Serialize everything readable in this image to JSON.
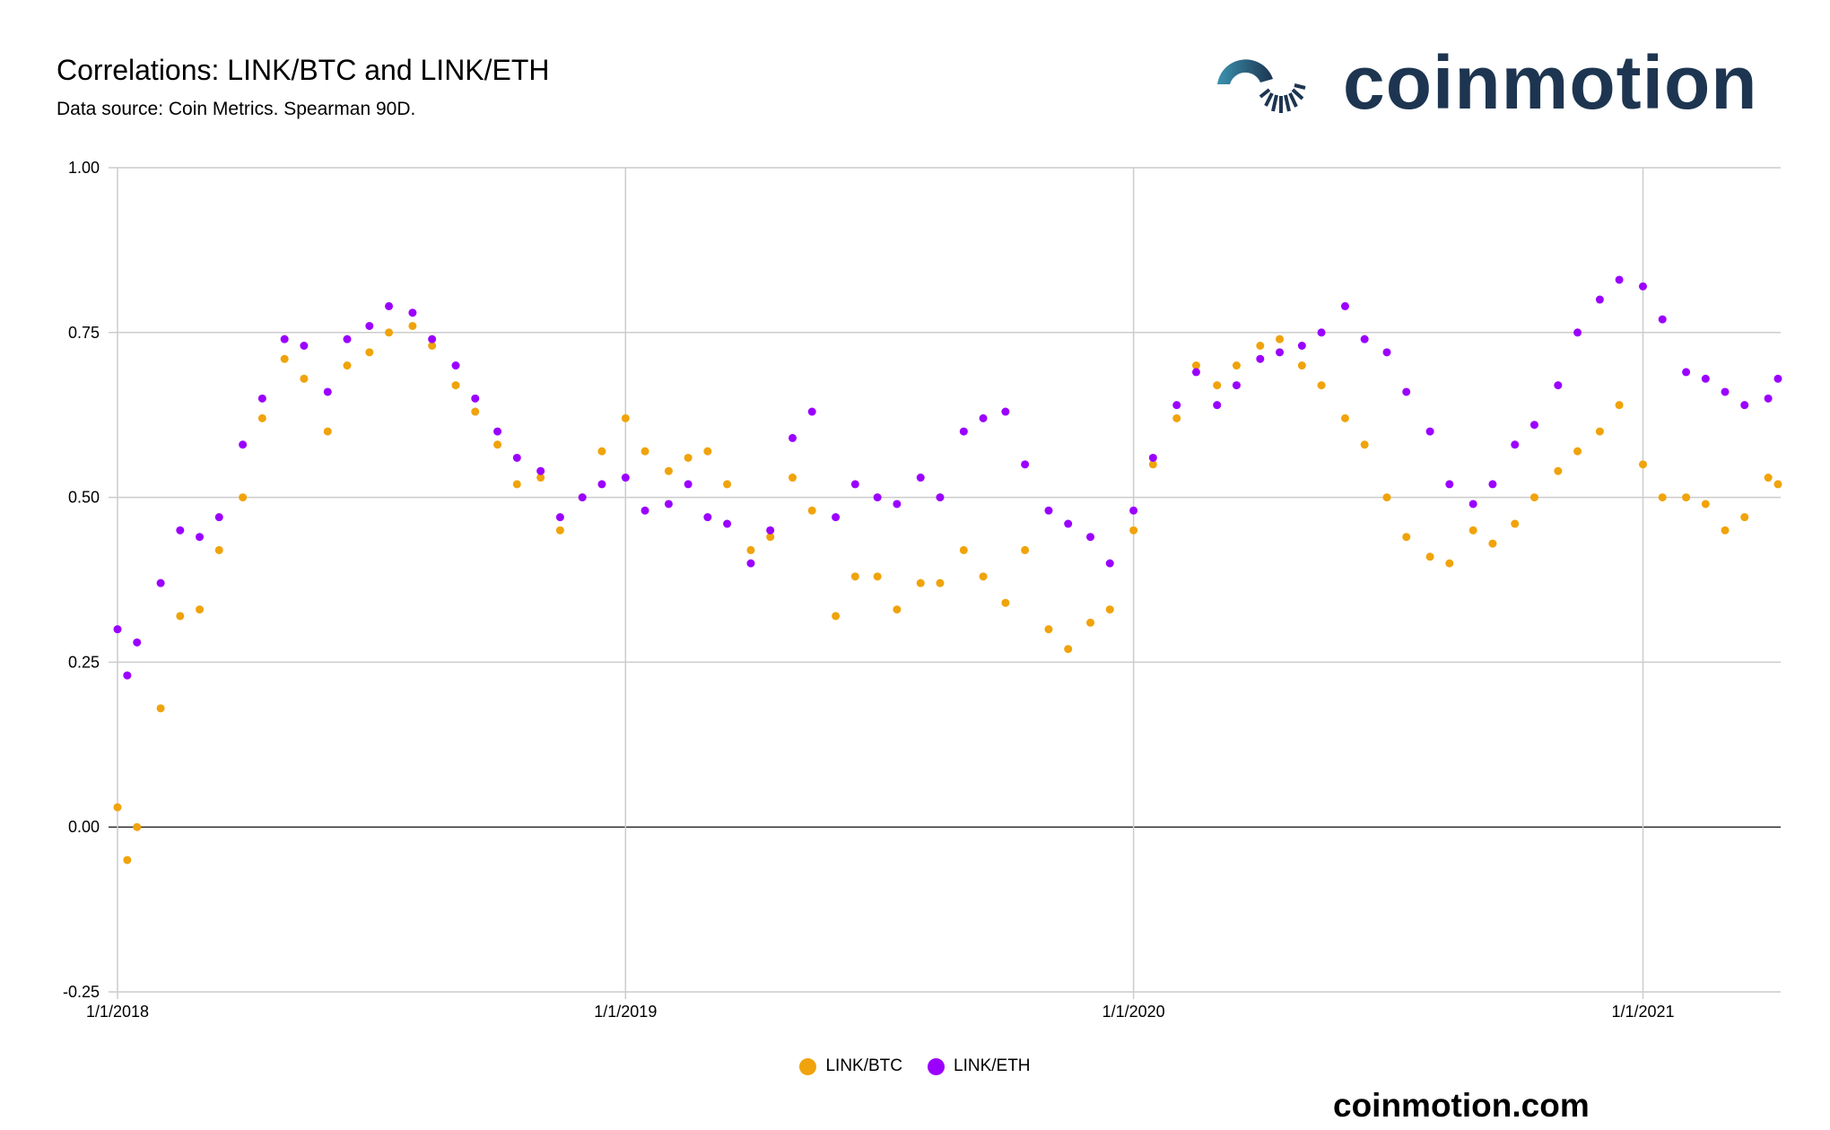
{
  "header": {
    "title": "Correlations: LINK/BTC and LINK/ETH",
    "subtitle": "Data source: Coin Metrics. Spearman 90D."
  },
  "logo": {
    "text": "coinmotion",
    "color": "#1d3550",
    "accent": "#2f7f9a"
  },
  "footer": {
    "site": "coinmotion.com"
  },
  "chart_data": {
    "type": "scatter",
    "title": "Correlations: LINK/BTC and LINK/ETH",
    "xlabel": "",
    "ylabel": "",
    "ylim": [
      -0.25,
      1.0
    ],
    "yticks": [
      "-0.25",
      "0.00",
      "0.25",
      "0.50",
      "0.75",
      "1.00"
    ],
    "xticks": [
      "1/1/2018",
      "1/1/2019",
      "1/1/2020",
      "1/1/2021"
    ],
    "xrange": [
      "2018-01-01",
      "2021-04-08"
    ],
    "grid": true,
    "legend": "bottom",
    "series": [
      {
        "name": "LINK/BTC",
        "color": "#f0a30a",
        "points": [
          [
            "2018-01-01",
            0.03
          ],
          [
            "2018-01-08",
            -0.05
          ],
          [
            "2018-01-15",
            0.0
          ],
          [
            "2018-02-01",
            0.18
          ],
          [
            "2018-02-15",
            0.32
          ],
          [
            "2018-03-01",
            0.33
          ],
          [
            "2018-03-15",
            0.42
          ],
          [
            "2018-04-01",
            0.5
          ],
          [
            "2018-04-15",
            0.62
          ],
          [
            "2018-05-01",
            0.71
          ],
          [
            "2018-05-15",
            0.68
          ],
          [
            "2018-06-01",
            0.6
          ],
          [
            "2018-06-15",
            0.7
          ],
          [
            "2018-07-01",
            0.72
          ],
          [
            "2018-07-15",
            0.75
          ],
          [
            "2018-08-01",
            0.76
          ],
          [
            "2018-08-15",
            0.73
          ],
          [
            "2018-09-01",
            0.67
          ],
          [
            "2018-09-15",
            0.63
          ],
          [
            "2018-10-01",
            0.58
          ],
          [
            "2018-10-15",
            0.52
          ],
          [
            "2018-11-01",
            0.53
          ],
          [
            "2018-11-15",
            0.45
          ],
          [
            "2018-12-01",
            0.5
          ],
          [
            "2018-12-15",
            0.57
          ],
          [
            "2019-01-01",
            0.62
          ],
          [
            "2019-01-15",
            0.57
          ],
          [
            "2019-02-01",
            0.54
          ],
          [
            "2019-02-15",
            0.56
          ],
          [
            "2019-03-01",
            0.57
          ],
          [
            "2019-03-15",
            0.52
          ],
          [
            "2019-04-01",
            0.42
          ],
          [
            "2019-04-15",
            0.44
          ],
          [
            "2019-05-01",
            0.53
          ],
          [
            "2019-05-15",
            0.48
          ],
          [
            "2019-06-01",
            0.32
          ],
          [
            "2019-06-15",
            0.38
          ],
          [
            "2019-07-01",
            0.38
          ],
          [
            "2019-07-15",
            0.33
          ],
          [
            "2019-08-01",
            0.37
          ],
          [
            "2019-08-15",
            0.37
          ],
          [
            "2019-09-01",
            0.42
          ],
          [
            "2019-09-15",
            0.38
          ],
          [
            "2019-10-01",
            0.34
          ],
          [
            "2019-10-15",
            0.42
          ],
          [
            "2019-11-01",
            0.3
          ],
          [
            "2019-11-15",
            0.27
          ],
          [
            "2019-12-01",
            0.31
          ],
          [
            "2019-12-15",
            0.33
          ],
          [
            "2020-01-01",
            0.45
          ],
          [
            "2020-01-15",
            0.55
          ],
          [
            "2020-02-01",
            0.62
          ],
          [
            "2020-02-15",
            0.7
          ],
          [
            "2020-03-01",
            0.67
          ],
          [
            "2020-03-15",
            0.7
          ],
          [
            "2020-04-01",
            0.73
          ],
          [
            "2020-04-15",
            0.74
          ],
          [
            "2020-05-01",
            0.7
          ],
          [
            "2020-05-15",
            0.67
          ],
          [
            "2020-06-01",
            0.62
          ],
          [
            "2020-06-15",
            0.58
          ],
          [
            "2020-07-01",
            0.5
          ],
          [
            "2020-07-15",
            0.44
          ],
          [
            "2020-08-01",
            0.41
          ],
          [
            "2020-08-15",
            0.4
          ],
          [
            "2020-09-01",
            0.45
          ],
          [
            "2020-09-15",
            0.43
          ],
          [
            "2020-10-01",
            0.46
          ],
          [
            "2020-10-15",
            0.5
          ],
          [
            "2020-11-01",
            0.54
          ],
          [
            "2020-11-15",
            0.57
          ],
          [
            "2020-12-01",
            0.6
          ],
          [
            "2020-12-15",
            0.64
          ],
          [
            "2021-01-01",
            0.55
          ],
          [
            "2021-01-15",
            0.5
          ],
          [
            "2021-02-01",
            0.5
          ],
          [
            "2021-02-15",
            0.49
          ],
          [
            "2021-03-01",
            0.45
          ],
          [
            "2021-03-15",
            0.47
          ],
          [
            "2021-04-01",
            0.53
          ],
          [
            "2021-04-08",
            0.52
          ]
        ]
      },
      {
        "name": "LINK/ETH",
        "color": "#9b00ff",
        "points": [
          [
            "2018-01-01",
            0.3
          ],
          [
            "2018-01-08",
            0.23
          ],
          [
            "2018-01-15",
            0.28
          ],
          [
            "2018-02-01",
            0.37
          ],
          [
            "2018-02-15",
            0.45
          ],
          [
            "2018-03-01",
            0.44
          ],
          [
            "2018-03-15",
            0.47
          ],
          [
            "2018-04-01",
            0.58
          ],
          [
            "2018-04-15",
            0.65
          ],
          [
            "2018-05-01",
            0.74
          ],
          [
            "2018-05-15",
            0.73
          ],
          [
            "2018-06-01",
            0.66
          ],
          [
            "2018-06-15",
            0.74
          ],
          [
            "2018-07-01",
            0.76
          ],
          [
            "2018-07-15",
            0.79
          ],
          [
            "2018-08-01",
            0.78
          ],
          [
            "2018-08-15",
            0.74
          ],
          [
            "2018-09-01",
            0.7
          ],
          [
            "2018-09-15",
            0.65
          ],
          [
            "2018-10-01",
            0.6
          ],
          [
            "2018-10-15",
            0.56
          ],
          [
            "2018-11-01",
            0.54
          ],
          [
            "2018-11-15",
            0.47
          ],
          [
            "2018-12-01",
            0.5
          ],
          [
            "2018-12-15",
            0.52
          ],
          [
            "2019-01-01",
            0.53
          ],
          [
            "2019-01-15",
            0.48
          ],
          [
            "2019-02-01",
            0.49
          ],
          [
            "2019-02-15",
            0.52
          ],
          [
            "2019-03-01",
            0.47
          ],
          [
            "2019-03-15",
            0.46
          ],
          [
            "2019-04-01",
            0.4
          ],
          [
            "2019-04-15",
            0.45
          ],
          [
            "2019-05-01",
            0.59
          ],
          [
            "2019-05-15",
            0.63
          ],
          [
            "2019-06-01",
            0.47
          ],
          [
            "2019-06-15",
            0.52
          ],
          [
            "2019-07-01",
            0.5
          ],
          [
            "2019-07-15",
            0.49
          ],
          [
            "2019-08-01",
            0.53
          ],
          [
            "2019-08-15",
            0.5
          ],
          [
            "2019-09-01",
            0.6
          ],
          [
            "2019-09-15",
            0.62
          ],
          [
            "2019-10-01",
            0.63
          ],
          [
            "2019-10-15",
            0.55
          ],
          [
            "2019-11-01",
            0.48
          ],
          [
            "2019-11-15",
            0.46
          ],
          [
            "2019-12-01",
            0.44
          ],
          [
            "2019-12-15",
            0.4
          ],
          [
            "2020-01-01",
            0.48
          ],
          [
            "2020-01-15",
            0.56
          ],
          [
            "2020-02-01",
            0.64
          ],
          [
            "2020-02-15",
            0.69
          ],
          [
            "2020-03-01",
            0.64
          ],
          [
            "2020-03-15",
            0.67
          ],
          [
            "2020-04-01",
            0.71
          ],
          [
            "2020-04-15",
            0.72
          ],
          [
            "2020-05-01",
            0.73
          ],
          [
            "2020-05-15",
            0.75
          ],
          [
            "2020-06-01",
            0.79
          ],
          [
            "2020-06-15",
            0.74
          ],
          [
            "2020-07-01",
            0.72
          ],
          [
            "2020-07-15",
            0.66
          ],
          [
            "2020-08-01",
            0.6
          ],
          [
            "2020-08-15",
            0.52
          ],
          [
            "2020-09-01",
            0.49
          ],
          [
            "2020-09-15",
            0.52
          ],
          [
            "2020-10-01",
            0.58
          ],
          [
            "2020-10-15",
            0.61
          ],
          [
            "2020-11-01",
            0.67
          ],
          [
            "2020-11-15",
            0.75
          ],
          [
            "2020-12-01",
            0.8
          ],
          [
            "2020-12-15",
            0.83
          ],
          [
            "2021-01-01",
            0.82
          ],
          [
            "2021-01-15",
            0.77
          ],
          [
            "2021-02-01",
            0.69
          ],
          [
            "2021-02-15",
            0.68
          ],
          [
            "2021-03-01",
            0.66
          ],
          [
            "2021-03-15",
            0.64
          ],
          [
            "2021-04-01",
            0.65
          ],
          [
            "2021-04-08",
            0.68
          ]
        ]
      }
    ]
  }
}
